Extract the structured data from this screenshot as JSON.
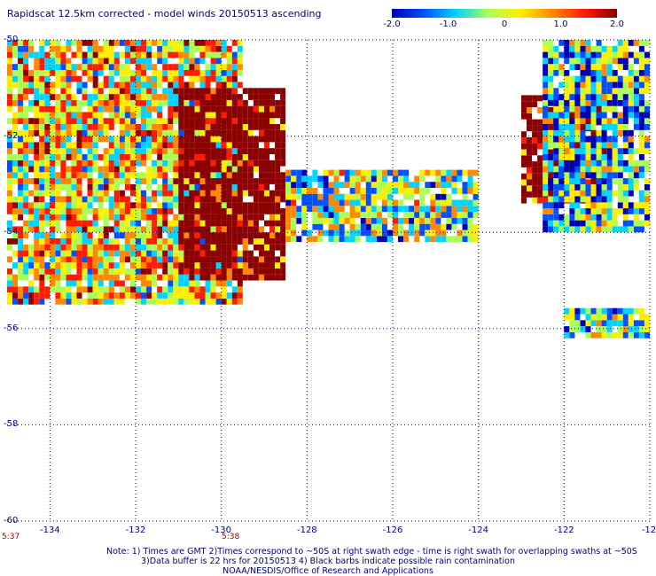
{
  "title": "Rapidscat 12.5km corrected - model winds 20150513 ascending",
  "colorbar": {
    "labels": [
      "-2.0",
      "-1.0",
      "0",
      "1.0",
      "2.0"
    ],
    "range": [
      -2.0,
      2.0
    ],
    "colors": [
      "#0000b4",
      "#0050ff",
      "#00d4ff",
      "#aaff55",
      "#ffee00",
      "#ff8800",
      "#ff1a00",
      "#8b0000"
    ]
  },
  "chart_data": {
    "type": "heatmap",
    "title": "Rapidscat 12.5km corrected - model winds 20150513 ascending",
    "xlim": [
      -135,
      -120
    ],
    "ylim": [
      -60,
      -50
    ],
    "x_ticks": [
      "-134",
      "-132",
      "-130",
      "-128",
      "-126",
      "-124",
      "-122",
      "-12"
    ],
    "y_ticks": [
      "-50",
      "-52",
      "-54",
      "-56",
      "-58",
      "-60"
    ],
    "value_range": [
      -2.0,
      2.0
    ],
    "grid": true,
    "description_regions": [
      {
        "lon_range": [
          -135,
          -129.5
        ],
        "lat_range": [
          -55.5,
          -50
        ],
        "mean": 0.3
      },
      {
        "lon_range": [
          -131,
          -128.5
        ],
        "lat_range": [
          -55,
          -51
        ],
        "mean": 2.0
      },
      {
        "lon_range": [
          -128.5,
          -124
        ],
        "lat_range": [
          -54.2,
          -52.7
        ],
        "mean": -0.4
      },
      {
        "lon_range": [
          -123,
          -121
        ],
        "lat_range": [
          -53.4,
          -51.2
        ],
        "mean": 2.0
      },
      {
        "lon_range": [
          -122.5,
          -120
        ],
        "lat_range": [
          -54,
          -50
        ],
        "mean": -0.8
      },
      {
        "lon_range": [
          -122,
          -120
        ],
        "lat_range": [
          -56.2,
          -55.6
        ],
        "mean": -0.6
      }
    ]
  },
  "time_labels": [
    "5:37",
    "5:38"
  ],
  "notes": [
    "Note: 1) Times are GMT 2)Times correspond to ~50S at right swath edge - time is right swath for overlapping swaths at ~50S",
    "3)Data buffer is 22 hrs for 20150513 4) Black barbs indicate possible rain contamination",
    "NOAA/NESDIS/Office of Research and Applications"
  ]
}
